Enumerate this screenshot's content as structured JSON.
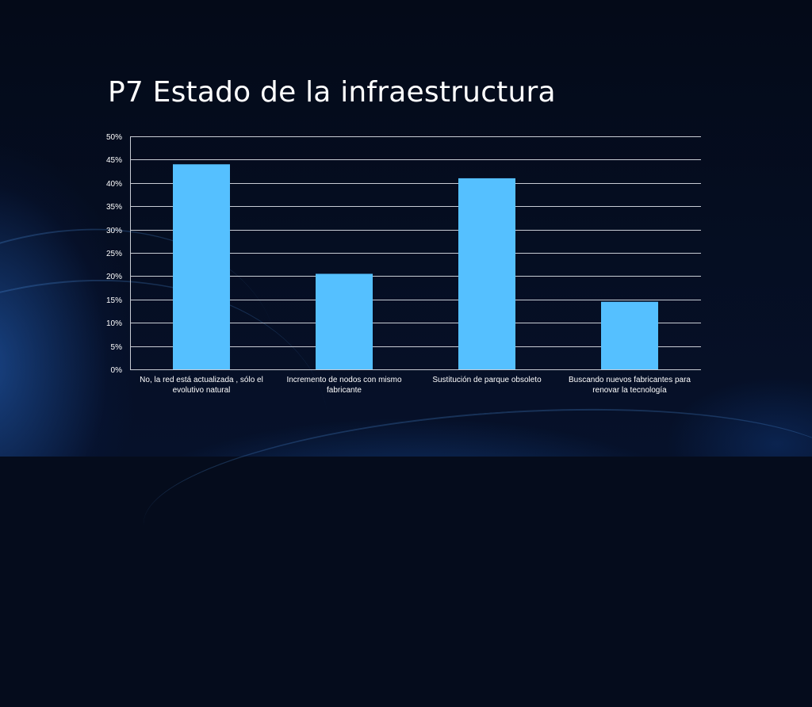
{
  "title": "P7 Estado de la infraestructura",
  "colors": {
    "background": "#050c1c",
    "bar": "#55c0ff",
    "grid": "#c8ccd4",
    "text": "#ffffff"
  },
  "chart_data": {
    "type": "bar",
    "categories": [
      "No, la red está actualizada , sólo el evolutivo natural",
      "Incremento de nodos con mismo fabricante",
      "Sustitución de parque obsoleto",
      "Buscando nuevos fabricantes para renovar la tecnología"
    ],
    "values": [
      44,
      20.5,
      41,
      14.5
    ],
    "ylim": [
      0,
      50
    ],
    "yticks": [
      "0%",
      "5%",
      "10%",
      "15%",
      "20%",
      "25%",
      "30%",
      "35%",
      "40%",
      "45%",
      "50%"
    ],
    "grid": true,
    "legend": false
  }
}
